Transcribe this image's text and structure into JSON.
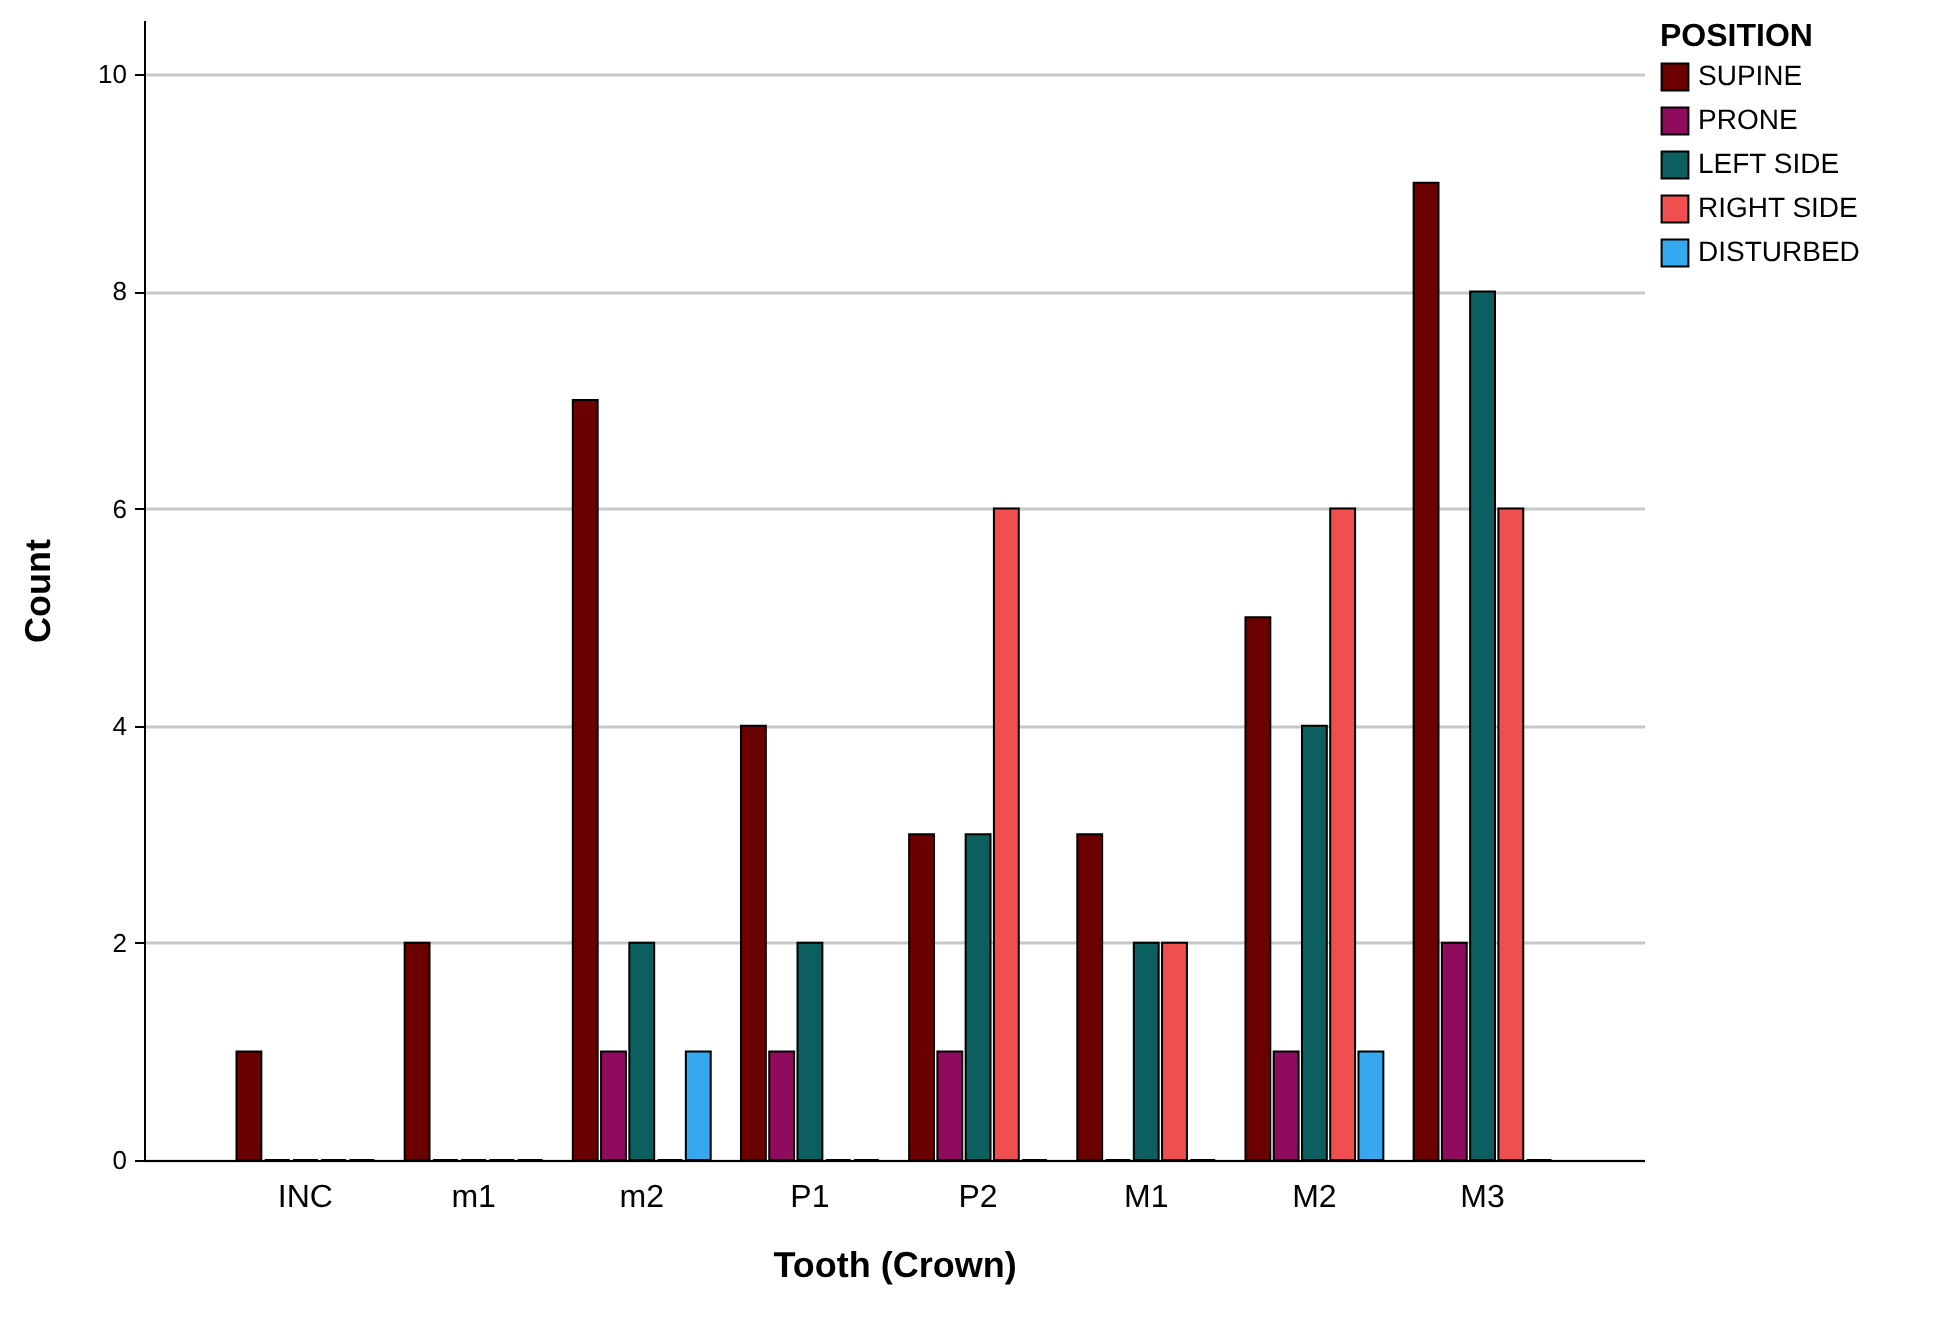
{
  "chart_data": {
    "type": "bar",
    "xlabel": "Tooth (Crown)",
    "ylabel": "Count",
    "legend_title": "POSITION",
    "legend": "top right",
    "grid": "y",
    "categories": [
      "INC",
      "m1",
      "m2",
      "P1",
      "P2",
      "M1",
      "M2",
      "M3"
    ],
    "ylim": [
      0,
      10.5
    ],
    "yticks": [
      0,
      2,
      4,
      6,
      8,
      10
    ],
    "series": [
      {
        "name": "SUPINE",
        "color": "#6b0000",
        "values": [
          1,
          2,
          7,
          4,
          3,
          3,
          5,
          9
        ]
      },
      {
        "name": "PRONE",
        "color": "#8e0b5e",
        "values": [
          0,
          0,
          1,
          1,
          1,
          0,
          1,
          2
        ]
      },
      {
        "name": "LEFT SIDE",
        "color": "#0b5f5f",
        "values": [
          0,
          0,
          2,
          2,
          3,
          2,
          4,
          8
        ]
      },
      {
        "name": "RIGHT SIDE",
        "color": "#ef4f4f",
        "values": [
          0,
          0,
          0,
          0,
          6,
          2,
          6,
          6
        ]
      },
      {
        "name": "DISTURBED",
        "color": "#35a8f0",
        "values": [
          0,
          0,
          1,
          0,
          0,
          0,
          1,
          0
        ]
      }
    ]
  }
}
